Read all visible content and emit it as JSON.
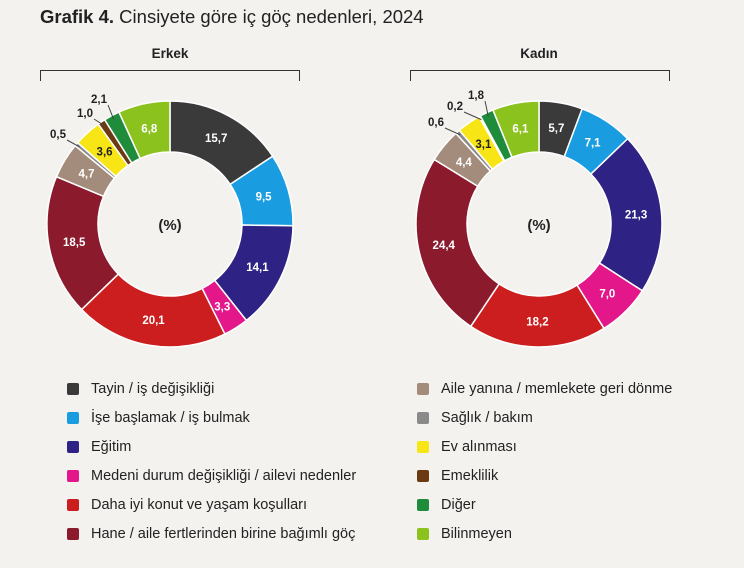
{
  "title": {
    "bold": "Grafik 4.",
    "rest": " Cinsiyete göre iç göç nedenleri, 2024"
  },
  "center_label": "(%)",
  "categories": [
    {
      "label": "Tayin / iş değişikliği",
      "color": "#3a3a3a"
    },
    {
      "label": "İşe başlamak / iş bulmak",
      "color": "#1a9de0"
    },
    {
      "label": "Eğitim",
      "color": "#2e2384"
    },
    {
      "label": "Medeni durum değişikliği / ailevi nedenler",
      "color": "#e3178a"
    },
    {
      "label": "Daha iyi konut ve yaşam koşulları",
      "color": "#cc1e1e"
    },
    {
      "label": "Hane / aile fertlerinden birine bağımlı göç",
      "color": "#8b1a2c"
    },
    {
      "label": "Aile yanına / memlekete geri dönme",
      "color": "#a48c7c"
    },
    {
      "label": "Sağlık / bakım",
      "color": "#8a8a8a"
    },
    {
      "label": "Ev alınması",
      "color": "#f7e516"
    },
    {
      "label": "Emeklilik",
      "color": "#6b3a12"
    },
    {
      "label": "Diğer",
      "color": "#1e8c3a"
    },
    {
      "label": "Bilinmeyen",
      "color": "#8cc21e"
    }
  ],
  "chart_data": [
    {
      "type": "pie",
      "title": "Erkek",
      "unit": "(%)",
      "values": [
        15.7,
        9.5,
        14.1,
        3.3,
        20.1,
        18.5,
        4.7,
        0.5,
        3.6,
        1.0,
        2.1,
        6.8
      ],
      "value_labels": [
        "15,7",
        "9,5",
        "14,1",
        "3,3",
        "20,1",
        "18,5",
        "4,7",
        "0,5",
        "3,6",
        "1,0",
        "2,1",
        "6,8"
      ]
    },
    {
      "type": "pie",
      "title": "Kadın",
      "unit": "(%)",
      "values": [
        5.7,
        7.1,
        21.3,
        7.0,
        18.2,
        24.4,
        4.4,
        0.6,
        3.1,
        0.2,
        1.8,
        6.1
      ],
      "value_labels": [
        "5,7",
        "7,1",
        "21,3",
        "7,0",
        "18,2",
        "24,4",
        "4,4",
        "0,6",
        "3,1",
        "0,2",
        "1,8",
        "6,1"
      ]
    }
  ]
}
